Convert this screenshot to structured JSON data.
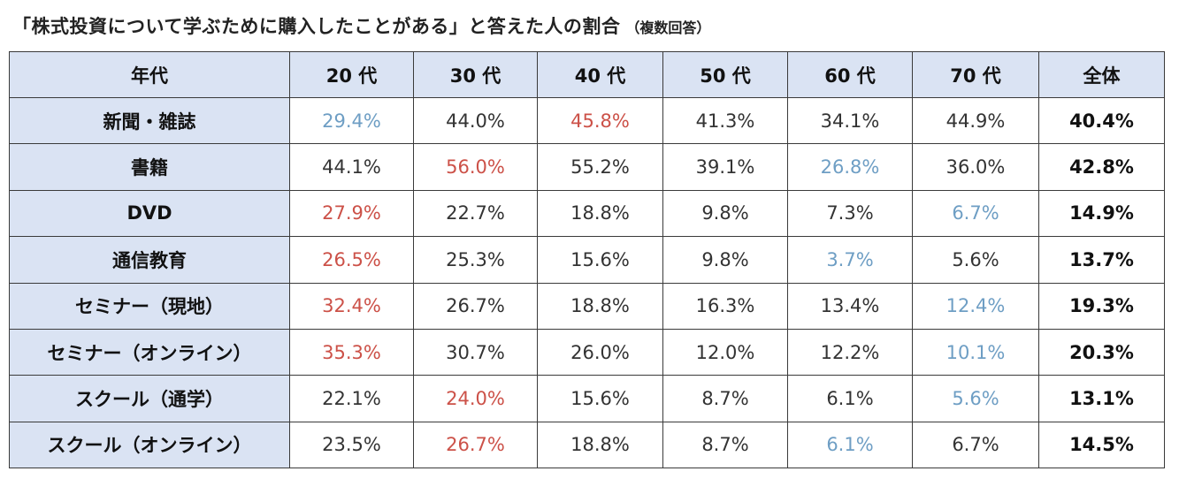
{
  "title": {
    "main": "「株式投資について学ぶために購入したことがある」と答えた人の割合",
    "sub": "（複数回答）"
  },
  "colors": {
    "header_bg": "#dae3f3",
    "highlight_high": "#cc5148",
    "highlight_low": "#6e9ec4",
    "border": "#3a3a3a"
  },
  "chart_data": {
    "type": "table",
    "title": "「株式投資について学ぶために購入したことがある」と答えた人の割合（複数回答）",
    "header": [
      "年代",
      "20 代",
      "30 代",
      "40 代",
      "50 代",
      "60 代",
      "70 代",
      "全体"
    ],
    "rows": [
      {
        "label": "新聞・雑誌",
        "values": [
          "29.4%",
          "44.0%",
          "45.8%",
          "41.3%",
          "34.1%",
          "44.9%"
        ],
        "total": "40.4%",
        "max_index": 2,
        "min_index": 0
      },
      {
        "label": "書籍",
        "values": [
          "44.1%",
          "56.0%",
          "55.2%",
          "39.1%",
          "26.8%",
          "36.0%"
        ],
        "total": "42.8%",
        "max_index": 1,
        "min_index": 4
      },
      {
        "label": "DVD",
        "values": [
          "27.9%",
          "22.7%",
          "18.8%",
          "9.8%",
          "7.3%",
          "6.7%"
        ],
        "total": "14.9%",
        "max_index": 0,
        "min_index": 5
      },
      {
        "label": "通信教育",
        "values": [
          "26.5%",
          "25.3%",
          "15.6%",
          "9.8%",
          "3.7%",
          "5.6%"
        ],
        "total": "13.7%",
        "max_index": 0,
        "min_index": 4
      },
      {
        "label": "セミナー（現地）",
        "values": [
          "32.4%",
          "26.7%",
          "18.8%",
          "16.3%",
          "13.4%",
          "12.4%"
        ],
        "total": "19.3%",
        "max_index": 0,
        "min_index": 5
      },
      {
        "label": "セミナー（オンライン）",
        "values": [
          "35.3%",
          "30.7%",
          "26.0%",
          "12.0%",
          "12.2%",
          "10.1%"
        ],
        "total": "20.3%",
        "max_index": 0,
        "min_index": 5
      },
      {
        "label": "スクール（通学）",
        "values": [
          "22.1%",
          "24.0%",
          "15.6%",
          "8.7%",
          "6.1%",
          "5.6%"
        ],
        "total": "13.1%",
        "max_index": 1,
        "min_index": 5
      },
      {
        "label": "スクール（オンライン）",
        "values": [
          "23.5%",
          "26.7%",
          "18.8%",
          "8.7%",
          "6.1%",
          "6.7%"
        ],
        "total": "14.5%",
        "max_index": 1,
        "min_index": 4
      }
    ]
  }
}
